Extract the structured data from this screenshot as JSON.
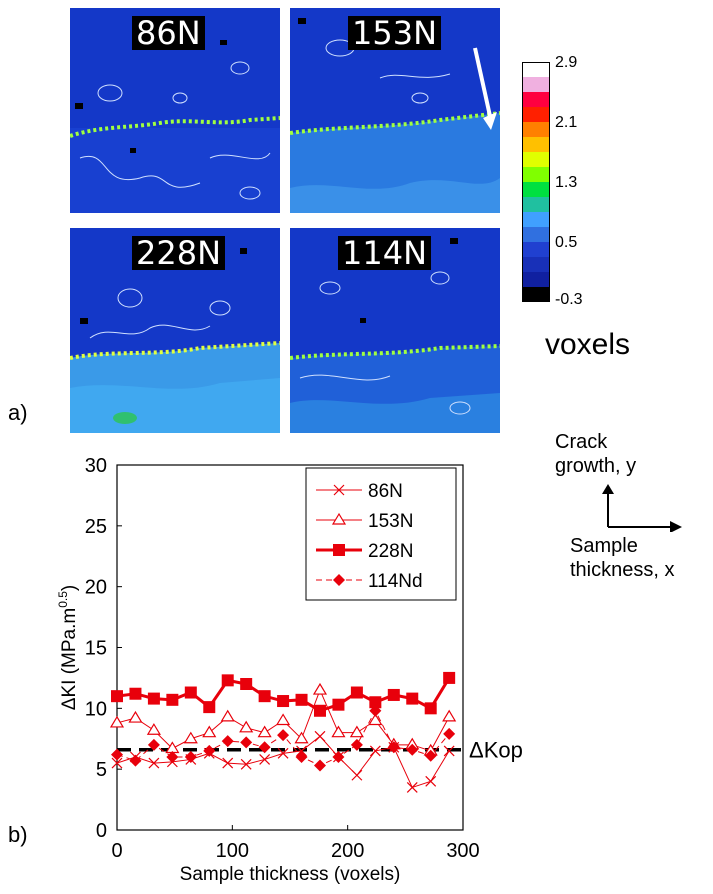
{
  "panel_a": {
    "label": "a)",
    "maps": [
      {
        "label": "86N",
        "fill": "#1438c8",
        "lower_fill": "#1438c8"
      },
      {
        "label": "153N",
        "fill": "#1438c8",
        "lower_fill": "#2a7ae0"
      },
      {
        "label": "228N",
        "fill": "#1438c8",
        "lower_fill": "#3a9ae8"
      },
      {
        "label": "114N",
        "fill": "#1438c8",
        "lower_fill": "#2060d8"
      }
    ],
    "colorbar": {
      "ticks": [
        "2.9",
        "2.1",
        "1.3",
        "0.5",
        "-0.3"
      ],
      "colors": [
        "#ffffff",
        "#f0b0e0",
        "#ff0040",
        "#ff2000",
        "#ff8000",
        "#ffc000",
        "#e0ff00",
        "#80ff00",
        "#00e040",
        "#20c0a0",
        "#40a0ff",
        "#3070e0",
        "#2040d0",
        "#1830b8",
        "#1020a0",
        "#000000"
      ],
      "unit": "voxels"
    }
  },
  "panel_b": {
    "label": "b)",
    "kop_label": "ΔKop"
  },
  "axes_note": {
    "crack": [
      "Crack",
      "growth, y"
    ],
    "thickness": [
      "Sample",
      "thickness, x"
    ]
  },
  "chart_data": {
    "type": "line",
    "xlabel": "Sample thickness (voxels)",
    "ylabel": "ΔKI (MPa.m0.5)",
    "ylabel_main": "ΔKI (MPa.m",
    "ylabel_sup": "0.5",
    "ylabel_end": ")",
    "xlim": [
      0,
      300
    ],
    "ylim": [
      0,
      30
    ],
    "xticks": [
      "0",
      "100",
      "200",
      "300"
    ],
    "yticks": [
      "0",
      "5",
      "10",
      "15",
      "20",
      "25",
      "30"
    ],
    "grid": false,
    "legend_position": "top-right",
    "x": [
      0,
      16,
      32,
      48,
      64,
      80,
      96,
      112,
      128,
      144,
      160,
      176,
      192,
      208,
      224,
      240,
      256,
      272,
      288
    ],
    "series": [
      {
        "name": "86N",
        "marker": "x",
        "color": "#e8000b",
        "width": 1,
        "values": [
          5.5,
          6.0,
          5.5,
          5.6,
          5.8,
          6.3,
          5.5,
          5.4,
          5.8,
          6.3,
          6.5,
          7.7,
          6.0,
          4.5,
          6.5,
          6.8,
          3.5,
          4.0,
          6.5
        ]
      },
      {
        "name": "153N",
        "marker": "triangle",
        "color": "#e8000b",
        "width": 1,
        "values": [
          8.8,
          9.2,
          8.2,
          6.7,
          7.5,
          8.0,
          9.3,
          8.4,
          8.0,
          9.0,
          7.5,
          11.5,
          8.0,
          8.0,
          9.0,
          7.0,
          7.0,
          6.5,
          9.3
        ]
      },
      {
        "name": "228N",
        "marker": "square",
        "color": "#e8000b",
        "width": 3,
        "values": [
          11.0,
          11.2,
          10.8,
          10.7,
          11.3,
          10.1,
          12.3,
          12.0,
          11.0,
          10.6,
          10.7,
          9.8,
          10.3,
          11.3,
          10.5,
          11.1,
          10.8,
          10.0,
          12.5
        ]
      },
      {
        "name": "114Nd",
        "marker": "diamond",
        "color": "#e8000b",
        "width": 1,
        "dashed": true,
        "values": [
          6.2,
          5.7,
          7.0,
          6.0,
          6.0,
          6.5,
          7.3,
          7.2,
          6.8,
          7.8,
          6.0,
          5.3,
          6.0,
          7.0,
          9.8,
          6.8,
          6.6,
          6.1,
          7.9
        ]
      }
    ],
    "reference_line": {
      "y": 6.6,
      "label": "ΔKop",
      "dashed": true,
      "color": "#000000"
    }
  }
}
